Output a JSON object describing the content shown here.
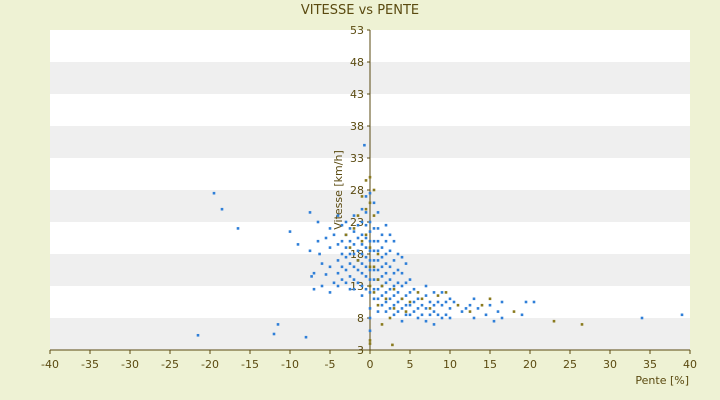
{
  "chart_data": {
    "type": "scatter",
    "title": "VITESSE vs PENTE",
    "xlabel": "Pente [%]",
    "ylabel": "Vitesse [km/h]",
    "xlim": [
      -40,
      40
    ],
    "ylim": [
      3,
      53
    ],
    "x_ticks": [
      "-40",
      "-35",
      "-30",
      "-25",
      "-20",
      "-15",
      "-10",
      "-5",
      "0",
      "5",
      "10",
      "15",
      "20",
      "25",
      "30",
      "35",
      "40"
    ],
    "y_ticks": [
      "53",
      "48",
      "43",
      "38",
      "33",
      "28",
      "23",
      "18",
      "13",
      "8",
      "3"
    ],
    "y_tick_values": [
      53,
      48,
      43,
      38,
      33,
      28,
      23,
      18,
      13,
      8,
      3
    ],
    "grid": "horizontal alternating bands",
    "legend": "none",
    "colors": {
      "background": "#eef2d4",
      "band_light": "#ffffff",
      "band_dark": "#efefef",
      "series_a": "#2f7fd8",
      "series_b": "#8a7a1e",
      "axis": "#5a4a10"
    },
    "series": [
      {
        "color": "#2f7fd8",
        "points": [
          [
            -21.5,
            5.3
          ],
          [
            -19.5,
            27.5
          ],
          [
            -18.5,
            25
          ],
          [
            -16.5,
            22
          ],
          [
            -11.5,
            7
          ],
          [
            -12,
            5.5
          ],
          [
            -10,
            21.5
          ],
          [
            -9,
            19.5
          ],
          [
            -8,
            5
          ],
          [
            -7.5,
            24.5
          ],
          [
            -7.5,
            18.5
          ],
          [
            -7.3,
            14.5
          ],
          [
            -7,
            12.5
          ],
          [
            -7,
            15
          ],
          [
            -6.5,
            23
          ],
          [
            -6.5,
            20
          ],
          [
            -6.3,
            18
          ],
          [
            -6,
            16.5
          ],
          [
            -6,
            13
          ],
          [
            -5.5,
            20.5
          ],
          [
            -5.5,
            14.8
          ],
          [
            -5,
            22
          ],
          [
            -5,
            19
          ],
          [
            -5,
            16
          ],
          [
            -5,
            12
          ],
          [
            -4.5,
            21
          ],
          [
            -4.5,
            13.5
          ],
          [
            -4,
            24
          ],
          [
            -4,
            19.5
          ],
          [
            -4,
            17
          ],
          [
            -4,
            15
          ],
          [
            -4,
            13
          ],
          [
            -3.5,
            22.5
          ],
          [
            -3.5,
            20
          ],
          [
            -3.5,
            18
          ],
          [
            -3.5,
            16
          ],
          [
            -3.5,
            14
          ],
          [
            -3,
            23
          ],
          [
            -3,
            21
          ],
          [
            -3,
            19
          ],
          [
            -3,
            17.5
          ],
          [
            -3,
            15.5
          ],
          [
            -3,
            13.5
          ],
          [
            -2.5,
            22
          ],
          [
            -2.5,
            20
          ],
          [
            -2.5,
            18
          ],
          [
            -2.5,
            16.5
          ],
          [
            -2.5,
            14.5
          ],
          [
            -2.5,
            12.5
          ],
          [
            -2,
            24
          ],
          [
            -2,
            21.5
          ],
          [
            -2,
            19.5
          ],
          [
            -2,
            18
          ],
          [
            -2,
            16
          ],
          [
            -2,
            14
          ],
          [
            -2,
            12.5
          ],
          [
            -1.5,
            22.5
          ],
          [
            -1.5,
            20.5
          ],
          [
            -1.5,
            18.5
          ],
          [
            -1.5,
            17
          ],
          [
            -1.5,
            15.5
          ],
          [
            -1.5,
            13.5
          ],
          [
            -1,
            25
          ],
          [
            -1,
            23
          ],
          [
            -1,
            21
          ],
          [
            -1,
            19.5
          ],
          [
            -1,
            18
          ],
          [
            -1,
            16.5
          ],
          [
            -1,
            15
          ],
          [
            -1,
            13
          ],
          [
            -1,
            11.5
          ],
          [
            -0.7,
            35
          ],
          [
            -0.5,
            27
          ],
          [
            -0.5,
            24.5
          ],
          [
            -0.5,
            22.5
          ],
          [
            -0.5,
            20.5
          ],
          [
            -0.5,
            19
          ],
          [
            -0.5,
            17.5
          ],
          [
            -0.5,
            16
          ],
          [
            -0.5,
            14.5
          ],
          [
            -0.5,
            12.5
          ],
          [
            0,
            27.5
          ],
          [
            0,
            23
          ],
          [
            0,
            21.5
          ],
          [
            0,
            20
          ],
          [
            0,
            18.5
          ],
          [
            0,
            17
          ],
          [
            0,
            15.5
          ],
          [
            0,
            14
          ],
          [
            0,
            12
          ],
          [
            0,
            9.5
          ],
          [
            0,
            8
          ],
          [
            0,
            6
          ],
          [
            0.5,
            26
          ],
          [
            0.5,
            22
          ],
          [
            0.5,
            20
          ],
          [
            0.5,
            18.5
          ],
          [
            0.5,
            17
          ],
          [
            0.5,
            15.5
          ],
          [
            0.5,
            14
          ],
          [
            0.5,
            12.5
          ],
          [
            0.5,
            11
          ],
          [
            1,
            24.5
          ],
          [
            1,
            22
          ],
          [
            1,
            20
          ],
          [
            1,
            18.5
          ],
          [
            1,
            17
          ],
          [
            1,
            15.5
          ],
          [
            1,
            14
          ],
          [
            1,
            12.5
          ],
          [
            1,
            11
          ],
          [
            1,
            9
          ],
          [
            1.5,
            21
          ],
          [
            1.5,
            19
          ],
          [
            1.5,
            17.5
          ],
          [
            1.5,
            16
          ],
          [
            1.5,
            14.5
          ],
          [
            1.5,
            13
          ],
          [
            1.5,
            11.5
          ],
          [
            1.5,
            10
          ],
          [
            2,
            22.5
          ],
          [
            2,
            20
          ],
          [
            2,
            18
          ],
          [
            2,
            16.5
          ],
          [
            2,
            15
          ],
          [
            2,
            13.5
          ],
          [
            2,
            12
          ],
          [
            2,
            10.5
          ],
          [
            2,
            9
          ],
          [
            2.5,
            21
          ],
          [
            2.5,
            18.5
          ],
          [
            2.5,
            16
          ],
          [
            2.5,
            14
          ],
          [
            2.5,
            12.5
          ],
          [
            2.5,
            11
          ],
          [
            2.5,
            9.5
          ],
          [
            3,
            20
          ],
          [
            3,
            17
          ],
          [
            3,
            15
          ],
          [
            3,
            13
          ],
          [
            3,
            11.5
          ],
          [
            3,
            10
          ],
          [
            3,
            8.5
          ],
          [
            3.5,
            18
          ],
          [
            3.5,
            15.5
          ],
          [
            3.5,
            13.5
          ],
          [
            3.5,
            12
          ],
          [
            3.5,
            10.5
          ],
          [
            3.5,
            9
          ],
          [
            4,
            17.5
          ],
          [
            4,
            15
          ],
          [
            4,
            13
          ],
          [
            4,
            11
          ],
          [
            4,
            9.5
          ],
          [
            4,
            7.5
          ],
          [
            4.5,
            16.5
          ],
          [
            4.5,
            13.5
          ],
          [
            4.5,
            11.5
          ],
          [
            4.5,
            10
          ],
          [
            4.5,
            8.5
          ],
          [
            5,
            14
          ],
          [
            5,
            12
          ],
          [
            5,
            10
          ],
          [
            5,
            8.5
          ],
          [
            5.5,
            12.5
          ],
          [
            5.5,
            10.5
          ],
          [
            5.5,
            9
          ],
          [
            6,
            11
          ],
          [
            6,
            9.5
          ],
          [
            6,
            8
          ],
          [
            6.5,
            10
          ],
          [
            6.5,
            8.5
          ],
          [
            7,
            13
          ],
          [
            7,
            11.5
          ],
          [
            7,
            9.5
          ],
          [
            7,
            7.5
          ],
          [
            7.5,
            10.5
          ],
          [
            7.5,
            8.5
          ],
          [
            8,
            12
          ],
          [
            8,
            10
          ],
          [
            8,
            9
          ],
          [
            8,
            7
          ],
          [
            8.5,
            10.5
          ],
          [
            8.5,
            8.5
          ],
          [
            9,
            12
          ],
          [
            9,
            10
          ],
          [
            9,
            8
          ],
          [
            9.5,
            10.5
          ],
          [
            9.5,
            8.5
          ],
          [
            10,
            11
          ],
          [
            10,
            9.5
          ],
          [
            10,
            8
          ],
          [
            10.5,
            10.5
          ],
          [
            11.5,
            9
          ],
          [
            12,
            9.5
          ],
          [
            12.5,
            10
          ],
          [
            13,
            11
          ],
          [
            13,
            8
          ],
          [
            13.5,
            9.5
          ],
          [
            14.5,
            8.5
          ],
          [
            15,
            10
          ],
          [
            15.5,
            7.5
          ],
          [
            16,
            9
          ],
          [
            16.5,
            10.5
          ],
          [
            16.5,
            8
          ],
          [
            19,
            8.5
          ],
          [
            19.5,
            10.5
          ],
          [
            20.5,
            10.5
          ],
          [
            34,
            8
          ],
          [
            39,
            8.5
          ]
        ]
      },
      {
        "color": "#8a7a1e",
        "points": [
          [
            -3,
            21
          ],
          [
            -2.5,
            19
          ],
          [
            -2,
            22
          ],
          [
            -1.5,
            24
          ],
          [
            -1.5,
            17
          ],
          [
            -1,
            27
          ],
          [
            -1,
            20
          ],
          [
            -0.5,
            29.5
          ],
          [
            -0.5,
            25
          ],
          [
            -0.5,
            21
          ],
          [
            0,
            30
          ],
          [
            0,
            26
          ],
          [
            0,
            19
          ],
          [
            0,
            16
          ],
          [
            0,
            13
          ],
          [
            0,
            4.5
          ],
          [
            0,
            4
          ],
          [
            0.5,
            28
          ],
          [
            0.5,
            24
          ],
          [
            0.5,
            16
          ],
          [
            0.5,
            12
          ],
          [
            1,
            18
          ],
          [
            1,
            14
          ],
          [
            1,
            10
          ],
          [
            1.5,
            13
          ],
          [
            1.5,
            7
          ],
          [
            2,
            11
          ],
          [
            2.5,
            8
          ],
          [
            2.8,
            3.8
          ],
          [
            3,
            12.5
          ],
          [
            3,
            9.5
          ],
          [
            4,
            11
          ],
          [
            4.5,
            9
          ],
          [
            5,
            10.5
          ],
          [
            6,
            12
          ],
          [
            6.5,
            11
          ],
          [
            7.5,
            9.5
          ],
          [
            8.5,
            11.5
          ],
          [
            9.5,
            12
          ],
          [
            11,
            10
          ],
          [
            12.5,
            9
          ],
          [
            14,
            10
          ],
          [
            15,
            11
          ],
          [
            18,
            9
          ],
          [
            23,
            7.5
          ],
          [
            26.5,
            7
          ]
        ]
      }
    ]
  }
}
